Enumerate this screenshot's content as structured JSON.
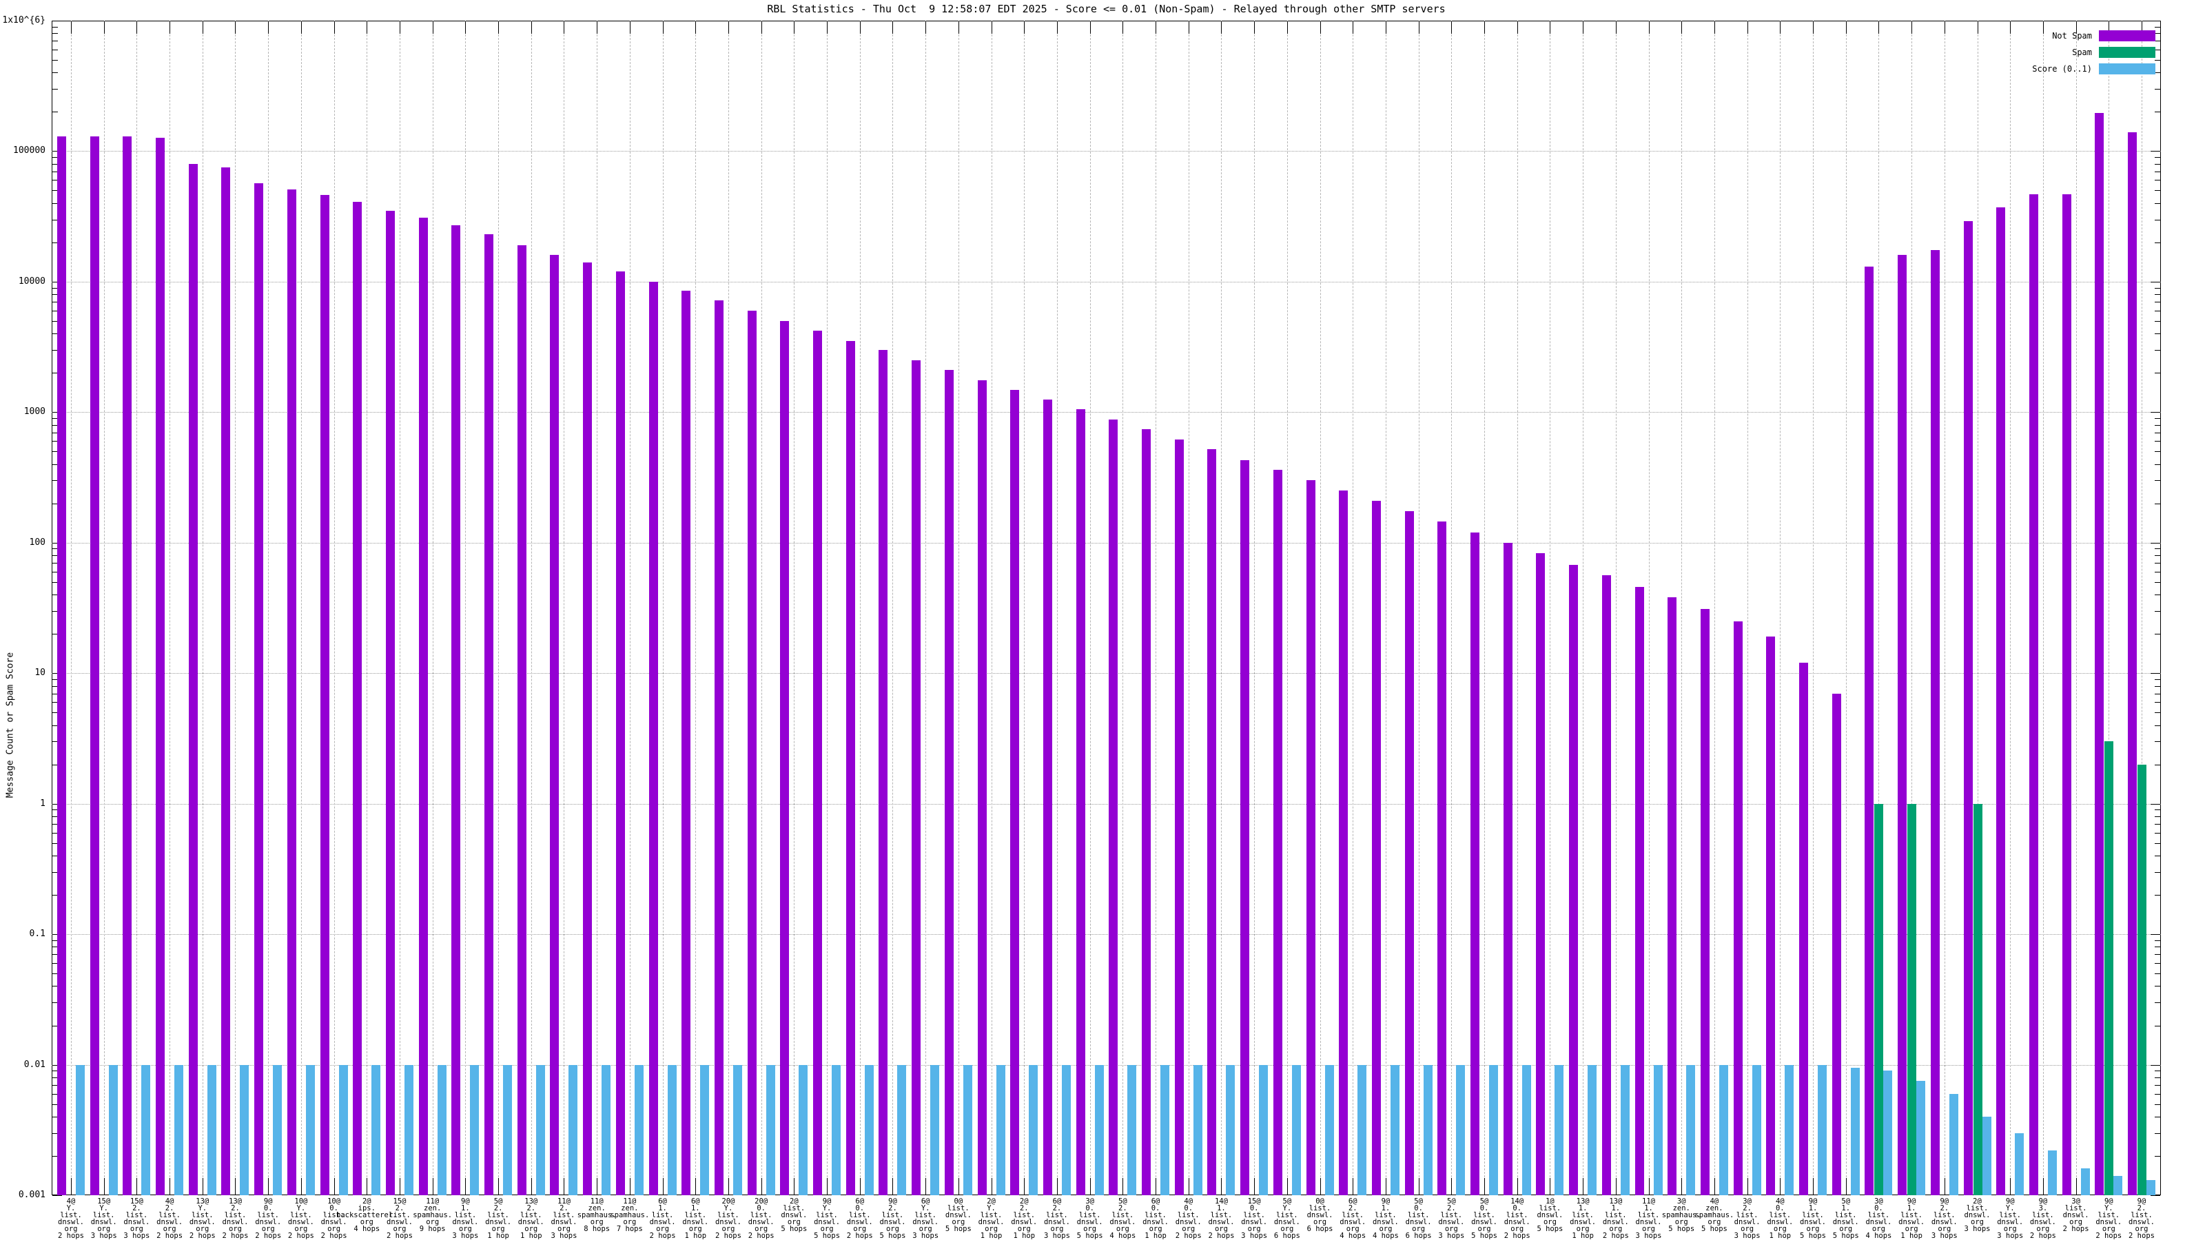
{
  "window": {
    "background": "#ffffff"
  },
  "chart_data": {
    "type": "bar",
    "title": "RBL Statistics - Thu Oct  9 12:58:07 EDT 2025 - Score <= 0.01 (Non-Spam) - Relayed through other SMTP servers",
    "ylabel": "Message Count or Spam Score",
    "xlabel": "",
    "grid": true,
    "legend_position": "top-right",
    "colors": {
      "not_spam": "#9400d3",
      "spam": "#00a070",
      "score": "#56b4e9"
    },
    "legend": [
      {
        "label": "Not Spam",
        "color": "#9400d3"
      },
      {
        "label": "Spam",
        "color": "#00a070"
      },
      {
        "label": "Score (0..1)",
        "color": "#56b4e9"
      }
    ],
    "y_axis": {
      "scale": "log",
      "min": 0.001,
      "max": 1000000,
      "tick_labels": [
        "1x10^{6}",
        "100000",
        "10000",
        "1000",
        "100",
        "10",
        "1",
        "0.1",
        "0.01",
        "0.001"
      ],
      "tick_values": [
        1000000,
        100000,
        10000,
        1000,
        100,
        10,
        1,
        0.1,
        0.01,
        0.001
      ]
    },
    "series_names": [
      "Not Spam",
      "Spam",
      "Score (0..1)"
    ],
    "groups": [
      {
        "label_lines": [
          "4@",
          "Y.",
          "list.",
          "dnswl.",
          "org",
          "2 hops"
        ],
        "not_spam": 130000,
        "spam": 0,
        "score": 0.01
      },
      {
        "label_lines": [
          "15@",
          "Y.",
          "list.",
          "dnswl.",
          "org",
          "3 hops"
        ],
        "not_spam": 130000,
        "spam": 0,
        "score": 0.01
      },
      {
        "label_lines": [
          "15@",
          "2.",
          "list.",
          "dnswl.",
          "org",
          "3 hops"
        ],
        "not_spam": 129000,
        "spam": 0,
        "score": 0.01
      },
      {
        "label_lines": [
          "4@",
          "2.",
          "list.",
          "dnswl.",
          "org",
          "2 hops"
        ],
        "not_spam": 127000,
        "spam": 0,
        "score": 0.01
      },
      {
        "label_lines": [
          "13@",
          "Y.",
          "list.",
          "dnswl.",
          "org",
          "2 hops"
        ],
        "not_spam": 80000,
        "spam": 0,
        "score": 0.01
      },
      {
        "label_lines": [
          "13@",
          "2.",
          "list.",
          "dnswl.",
          "org",
          "2 hops"
        ],
        "not_spam": 75000,
        "spam": 0,
        "score": 0.01
      },
      {
        "label_lines": [
          "9@",
          "0.",
          "list.",
          "dnswl.",
          "org",
          "2 hops"
        ],
        "not_spam": 57000,
        "spam": 0,
        "score": 0.01
      },
      {
        "label_lines": [
          "10@",
          "Y.",
          "list.",
          "dnswl.",
          "org",
          "2 hops"
        ],
        "not_spam": 51000,
        "spam": 0,
        "score": 0.01
      },
      {
        "label_lines": [
          "10@",
          "0.",
          "list.",
          "dnswl.",
          "org",
          "2 hops"
        ],
        "not_spam": 46000,
        "spam": 0,
        "score": 0.01
      },
      {
        "label_lines": [
          "2@",
          "ips.",
          "backscatterer.",
          "org",
          "4 hops"
        ],
        "not_spam": 41000,
        "spam": 0,
        "score": 0.01
      },
      {
        "label_lines": [
          "15@",
          "2.",
          "list.",
          "dnswl.",
          "org",
          "2 hops"
        ],
        "not_spam": 35000,
        "spam": 0,
        "score": 0.01
      },
      {
        "label_lines": [
          "11@",
          "zen.",
          "spamhaus.",
          "org",
          "9 hops"
        ],
        "not_spam": 31000,
        "spam": 0,
        "score": 0.01
      },
      {
        "label_lines": [
          "9@",
          "1.",
          "list.",
          "dnswl.",
          "org",
          "3 hops"
        ],
        "not_spam": 27000,
        "spam": 0,
        "score": 0.01
      },
      {
        "label_lines": [
          "5@",
          "2.",
          "list.",
          "dnswl.",
          "org",
          "1 hop"
        ],
        "not_spam": 23000,
        "spam": 0,
        "score": 0.01
      },
      {
        "label_lines": [
          "13@",
          "2.",
          "list.",
          "dnswl.",
          "org",
          "1 hop"
        ],
        "not_spam": 19000,
        "spam": 0,
        "score": 0.01
      },
      {
        "label_lines": [
          "11@",
          "2.",
          "list.",
          "dnswl.",
          "org",
          "3 hops"
        ],
        "not_spam": 16000,
        "spam": 0,
        "score": 0.01
      },
      {
        "label_lines": [
          "11@",
          "zen.",
          "spamhaus.",
          "org",
          "8 hops"
        ],
        "not_spam": 14000,
        "spam": 0,
        "score": 0.01
      },
      {
        "label_lines": [
          "11@",
          "zen.",
          "spamhaus.",
          "org",
          "7 hops"
        ],
        "not_spam": 12000,
        "spam": 0,
        "score": 0.01
      },
      {
        "label_lines": [
          "6@",
          "1.",
          "list.",
          "dnswl.",
          "org",
          "2 hops"
        ],
        "not_spam": 10000,
        "spam": 0,
        "score": 0.01
      },
      {
        "label_lines": [
          "6@",
          "1.",
          "list.",
          "dnswl.",
          "org",
          "1 hop"
        ],
        "not_spam": 8500,
        "spam": 0,
        "score": 0.01
      },
      {
        "label_lines": [
          "20@",
          "Y.",
          "list.",
          "dnswl.",
          "org",
          "2 hops"
        ],
        "not_spam": 7200,
        "spam": 0,
        "score": 0.01
      },
      {
        "label_lines": [
          "20@",
          "0.",
          "list.",
          "dnswl.",
          "org",
          "2 hops"
        ],
        "not_spam": 6000,
        "spam": 0,
        "score": 0.01
      },
      {
        "label_lines": [
          "2@",
          "list.",
          "dnswl.",
          "org",
          "5 hops"
        ],
        "not_spam": 5000,
        "spam": 0,
        "score": 0.01
      },
      {
        "label_lines": [
          "9@",
          "Y.",
          "list.",
          "dnswl.",
          "org",
          "5 hops"
        ],
        "not_spam": 4200,
        "spam": 0,
        "score": 0.01
      },
      {
        "label_lines": [
          "6@",
          "0.",
          "list.",
          "dnswl.",
          "org",
          "2 hops"
        ],
        "not_spam": 3500,
        "spam": 0,
        "score": 0.01
      },
      {
        "label_lines": [
          "9@",
          "2.",
          "list.",
          "dnswl.",
          "org",
          "5 hops"
        ],
        "not_spam": 3000,
        "spam": 0,
        "score": 0.01
      },
      {
        "label_lines": [
          "6@",
          "Y.",
          "list.",
          "dnswl.",
          "org",
          "3 hops"
        ],
        "not_spam": 2500,
        "spam": 0,
        "score": 0.01
      },
      {
        "label_lines": [
          "0@",
          "list.",
          "dnswl.",
          "org",
          "5 hops"
        ],
        "not_spam": 2100,
        "spam": 0,
        "score": 0.01
      },
      {
        "label_lines": [
          "2@",
          "Y.",
          "list.",
          "dnswl.",
          "org",
          "1 hop"
        ],
        "not_spam": 1750,
        "spam": 0,
        "score": 0.01
      },
      {
        "label_lines": [
          "2@",
          "2.",
          "list.",
          "dnswl.",
          "org",
          "1 hop"
        ],
        "not_spam": 1480,
        "spam": 0,
        "score": 0.01
      },
      {
        "label_lines": [
          "6@",
          "2.",
          "list.",
          "dnswl.",
          "org",
          "3 hops"
        ],
        "not_spam": 1250,
        "spam": 0,
        "score": 0.01
      },
      {
        "label_lines": [
          "3@",
          "0.",
          "list.",
          "dnswl.",
          "org",
          "5 hops"
        ],
        "not_spam": 1050,
        "spam": 0,
        "score": 0.01
      },
      {
        "label_lines": [
          "5@",
          "2.",
          "list.",
          "dnswl.",
          "org",
          "4 hops"
        ],
        "not_spam": 880,
        "spam": 0,
        "score": 0.01
      },
      {
        "label_lines": [
          "6@",
          "0.",
          "list.",
          "dnswl.",
          "org",
          "1 hop"
        ],
        "not_spam": 740,
        "spam": 0,
        "score": 0.01
      },
      {
        "label_lines": [
          "4@",
          "0.",
          "list.",
          "dnswl.",
          "org",
          "2 hops"
        ],
        "not_spam": 620,
        "spam": 0,
        "score": 0.01
      },
      {
        "label_lines": [
          "14@",
          "1.",
          "list.",
          "dnswl.",
          "org",
          "2 hops"
        ],
        "not_spam": 520,
        "spam": 0,
        "score": 0.01
      },
      {
        "label_lines": [
          "15@",
          "0.",
          "list.",
          "dnswl.",
          "org",
          "3 hops"
        ],
        "not_spam": 430,
        "spam": 0,
        "score": 0.01
      },
      {
        "label_lines": [
          "5@",
          "Y.",
          "list.",
          "dnswl.",
          "org",
          "6 hops"
        ],
        "not_spam": 360,
        "spam": 0,
        "score": 0.01
      },
      {
        "label_lines": [
          "0@",
          "list.",
          "dnswl.",
          "org",
          "6 hops"
        ],
        "not_spam": 300,
        "spam": 0,
        "score": 0.01
      },
      {
        "label_lines": [
          "6@",
          "2.",
          "list.",
          "dnswl.",
          "org",
          "4 hops"
        ],
        "not_spam": 250,
        "spam": 0,
        "score": 0.01
      },
      {
        "label_lines": [
          "9@",
          "1.",
          "list.",
          "dnswl.",
          "org",
          "4 hops"
        ],
        "not_spam": 210,
        "spam": 0,
        "score": 0.01
      },
      {
        "label_lines": [
          "5@",
          "0.",
          "list.",
          "dnswl.",
          "org",
          "6 hops"
        ],
        "not_spam": 175,
        "spam": 0,
        "score": 0.01
      },
      {
        "label_lines": [
          "5@",
          "2.",
          "list.",
          "dnswl.",
          "org",
          "3 hops"
        ],
        "not_spam": 145,
        "spam": 0,
        "score": 0.01
      },
      {
        "label_lines": [
          "5@",
          "0.",
          "list.",
          "dnswl.",
          "org",
          "5 hops"
        ],
        "not_spam": 120,
        "spam": 0,
        "score": 0.01
      },
      {
        "label_lines": [
          "14@",
          "0.",
          "list.",
          "dnswl.",
          "org",
          "2 hops"
        ],
        "not_spam": 100,
        "spam": 0,
        "score": 0.01
      },
      {
        "label_lines": [
          "1@",
          "list.",
          "dnswl.",
          "org",
          "5 hops"
        ],
        "not_spam": 83,
        "spam": 0,
        "score": 0.01
      },
      {
        "label_lines": [
          "13@",
          "1.",
          "list.",
          "dnswl.",
          "org",
          "1 hop"
        ],
        "not_spam": 68,
        "spam": 0,
        "score": 0.01
      },
      {
        "label_lines": [
          "13@",
          "1.",
          "list.",
          "dnswl.",
          "org",
          "2 hops"
        ],
        "not_spam": 56,
        "spam": 0,
        "score": 0.01
      },
      {
        "label_lines": [
          "11@",
          "1.",
          "list.",
          "dnswl.",
          "org",
          "3 hops"
        ],
        "not_spam": 46,
        "spam": 0,
        "score": 0.01
      },
      {
        "label_lines": [
          "3@",
          "zen.",
          "spamhaus.",
          "org",
          "5 hops"
        ],
        "not_spam": 38,
        "spam": 0,
        "score": 0.01
      },
      {
        "label_lines": [
          "4@",
          "zen.",
          "spamhaus.",
          "org",
          "5 hops"
        ],
        "not_spam": 31,
        "spam": 0,
        "score": 0.01
      },
      {
        "label_lines": [
          "3@",
          "2.",
          "list.",
          "dnswl.",
          "org",
          "3 hops"
        ],
        "not_spam": 25,
        "spam": 0,
        "score": 0.01
      },
      {
        "label_lines": [
          "4@",
          "0.",
          "list.",
          "dnswl.",
          "org",
          "1 hop"
        ],
        "not_spam": 19,
        "spam": 0,
        "score": 0.01
      },
      {
        "label_lines": [
          "9@",
          "1.",
          "list.",
          "dnswl.",
          "org",
          "5 hops"
        ],
        "not_spam": 12,
        "spam": 0,
        "score": 0.01
      },
      {
        "label_lines": [
          "5@",
          "1.",
          "list.",
          "dnswl.",
          "org",
          "5 hops"
        ],
        "not_spam": 7,
        "spam": 0,
        "score": 0.0095
      },
      {
        "label_lines": [
          "3@",
          "0.",
          "list.",
          "dnswl.",
          "org",
          "4 hops"
        ],
        "not_spam": 13000,
        "spam": 1,
        "score": 0.009
      },
      {
        "label_lines": [
          "9@",
          "1.",
          "list.",
          "dnswl.",
          "org",
          "1 hop"
        ],
        "not_spam": 16000,
        "spam": 1,
        "score": 0.0075
      },
      {
        "label_lines": [
          "9@",
          "2.",
          "list.",
          "dnswl.",
          "org",
          "3 hops"
        ],
        "not_spam": 17500,
        "spam": 0,
        "score": 0.006
      },
      {
        "label_lines": [
          "2@",
          "list.",
          "dnswl.",
          "org",
          "3 hops"
        ],
        "not_spam": 29000,
        "spam": 1,
        "score": 0.004
      },
      {
        "label_lines": [
          "9@",
          "Y.",
          "list.",
          "dnswl.",
          "org",
          "3 hops"
        ],
        "not_spam": 37000,
        "spam": 0,
        "score": 0.003
      },
      {
        "label_lines": [
          "9@",
          "3.",
          "list.",
          "dnswl.",
          "org",
          "2 hops"
        ],
        "not_spam": 47000,
        "spam": 0,
        "score": 0.0022
      },
      {
        "label_lines": [
          "3@",
          "list.",
          "dnswl.",
          "org",
          "2 hops"
        ],
        "not_spam": 47000,
        "spam": 0,
        "score": 0.0016
      },
      {
        "label_lines": [
          "9@",
          "Y.",
          "list.",
          "dnswl.",
          "org",
          "2 hops"
        ],
        "not_spam": 197000,
        "spam": 3,
        "score": 0.0014
      },
      {
        "label_lines": [
          "9@",
          "2.",
          "list.",
          "dnswl.",
          "org",
          "2 hops"
        ],
        "not_spam": 140000,
        "spam": 2,
        "score": 0.0013
      }
    ]
  }
}
